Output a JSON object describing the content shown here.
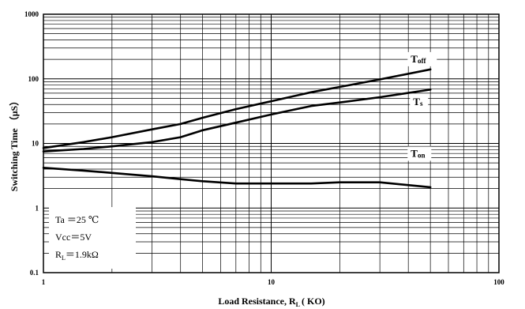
{
  "chart_data": {
    "type": "line",
    "xscale": "log",
    "yscale": "log",
    "xlim": [
      1,
      100
    ],
    "ylim": [
      0.1,
      1000
    ],
    "grid": true,
    "xlabel": "Load Resistance, R",
    "xlabel_sub": "L",
    "xlabel_suffix": "( KO)",
    "ylabel": "Switching Time （μS）",
    "x_ticks": [
      {
        "value": 1,
        "label": "1"
      },
      {
        "value": 10,
        "label": "10"
      },
      {
        "value": 100,
        "label": "100"
      }
    ],
    "y_ticks": [
      {
        "value": 0.1,
        "label": "0.1"
      },
      {
        "value": 1,
        "label": "1"
      },
      {
        "value": 10,
        "label": "10"
      },
      {
        "value": 100,
        "label": "100"
      },
      {
        "value": 1000,
        "label": "1000"
      }
    ],
    "series": [
      {
        "name": "T",
        "name_sub": "off",
        "label_x": 41,
        "label_y": 180,
        "x": [
          1,
          1.5,
          2,
          3,
          4,
          5,
          7,
          10,
          15,
          20,
          30,
          50
        ],
        "y": [
          8.5,
          10.5,
          12.5,
          16.5,
          20,
          25,
          34,
          45,
          62,
          75,
          98,
          140
        ]
      },
      {
        "name": "T",
        "name_sub": "s",
        "label_x": 42,
        "label_y": 39,
        "x": [
          1,
          1.5,
          2,
          3,
          4,
          5,
          7,
          10,
          15,
          20,
          30,
          50
        ],
        "y": [
          7.5,
          8.2,
          9,
          10.5,
          12.5,
          16,
          21,
          28,
          38,
          43,
          52,
          68
        ]
      },
      {
        "name": "T",
        "name_sub": "on",
        "label_x": 41,
        "label_y": 6.2,
        "x": [
          1,
          1.5,
          2,
          3,
          4,
          5,
          7,
          10,
          15,
          20,
          30,
          50
        ],
        "y": [
          4.2,
          3.8,
          3.5,
          3.1,
          2.8,
          2.6,
          2.4,
          2.4,
          2.4,
          2.5,
          2.5,
          2.1
        ]
      }
    ]
  },
  "conditions": {
    "ta": "Ta ＝25 ℃",
    "vcc": "Vcc＝5V",
    "rl_main": "R",
    "rl_sub": "L",
    "rl_value": "＝1.9kΩ"
  }
}
